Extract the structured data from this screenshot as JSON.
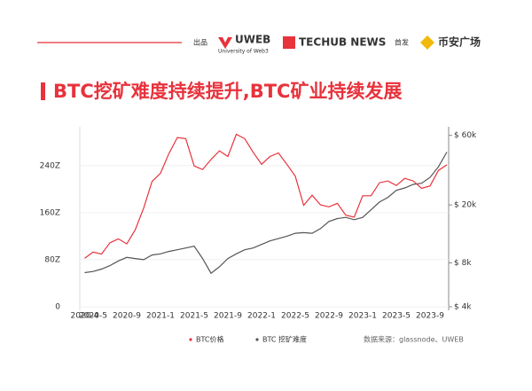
{
  "header": {
    "produced": "出品",
    "uweb": "UWEB",
    "uweb_sub": "University of Web3",
    "techub": "TECHUB NEWS",
    "first": "首发",
    "binance": "币安广场"
  },
  "title": "BTC挖矿难度持续提升,BTC矿业持续发展",
  "chart_data": {
    "type": "line",
    "categories": [
      "2020-4",
      "2020-5",
      null,
      null,
      null,
      "2020-9",
      null,
      null,
      null,
      "2021-1",
      null,
      null,
      null,
      "2021-5",
      null,
      null,
      null,
      "2021-9",
      null,
      null,
      null,
      "2022-1",
      null,
      null,
      null,
      "2022-5",
      null,
      null,
      null,
      "2022-9",
      null,
      null,
      null,
      "2023-1",
      null,
      null,
      null,
      "2023-5",
      null,
      null,
      null,
      "2023-9",
      null,
      null
    ],
    "series": [
      {
        "name": "BTC价格",
        "color": "#e8323c",
        "axis": "y2",
        "values": [
          8600,
          9500,
          9200,
          11000,
          11700,
          10800,
          13500,
          19000,
          29000,
          33000,
          45000,
          58000,
          57000,
          37000,
          35000,
          41000,
          47000,
          43000,
          61000,
          57000,
          46000,
          38000,
          43000,
          45500,
          38000,
          31500,
          19900,
          23300,
          20000,
          19400,
          20500,
          17000,
          16500,
          23100,
          23100,
          28400,
          29200,
          27200,
          30400,
          29200,
          26000,
          27000,
          34500,
          37700
        ]
      },
      {
        "name": "BTC 挖矿难度",
        "color": "#555555",
        "axis": "y",
        "values": [
          58,
          60,
          64,
          70,
          78,
          84,
          82,
          80,
          88,
          90,
          94,
          97,
          100,
          103,
          82,
          57,
          68,
          82,
          90,
          97,
          100,
          106,
          112,
          116,
          120,
          125,
          126,
          125,
          133,
          145,
          150,
          152,
          148,
          152,
          165,
          178,
          186,
          198,
          202,
          208,
          210,
          220,
          238,
          263
        ]
      }
    ],
    "ylim": [
      0,
      300
    ],
    "yticks": [
      0,
      {
        "value": 80,
        "label": "80Z"
      },
      {
        "value": 160,
        "label": "160Z"
      },
      {
        "value": 240,
        "label": "240Z"
      }
    ],
    "y2lim": [
      4000,
      65000
    ],
    "y2log": true,
    "y2ticks": [
      {
        "value": 4000,
        "label": "$ 4k"
      },
      {
        "value": 8000,
        "label": "$ 8k"
      },
      {
        "value": 20000,
        "label": "$ 20k"
      },
      {
        "value": 60000,
        "label": "$ 60k"
      }
    ],
    "grid": true,
    "source": "数据来源：glassnode、UWEB"
  }
}
